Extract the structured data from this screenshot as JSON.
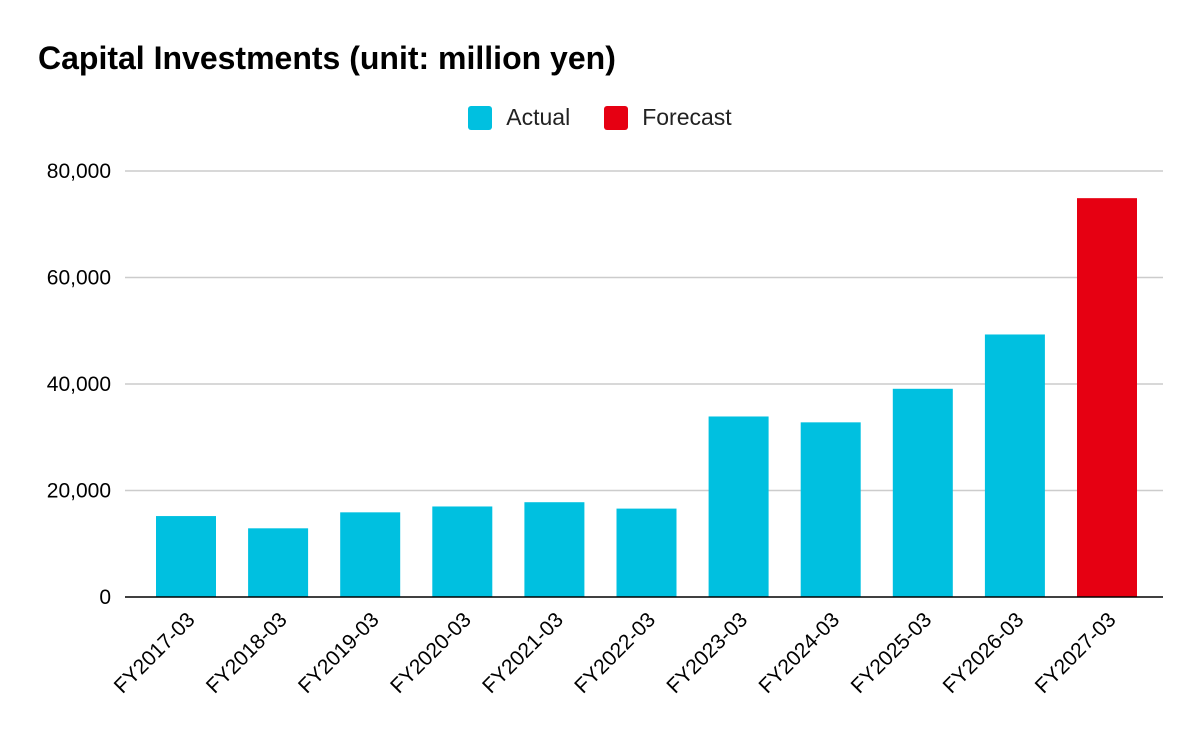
{
  "chart_data": {
    "type": "bar",
    "title": "Capital Investments (unit: million yen)",
    "xlabel": "",
    "ylabel": "",
    "categories": [
      "FY2017-03",
      "FY2018-03",
      "FY2019-03",
      "FY2020-03",
      "FY2021-03",
      "FY2022-03",
      "FY2023-03",
      "FY2024-03",
      "FY2025-03",
      "FY2026-03",
      "FY2027-03"
    ],
    "series": [
      {
        "name": "Actual",
        "color": "#00c0e0",
        "values": [
          15200,
          12900,
          15900,
          17000,
          17800,
          16600,
          33900,
          32800,
          39100,
          49300,
          null
        ]
      },
      {
        "name": "Forecast",
        "color": "#e60012",
        "values": [
          null,
          null,
          null,
          null,
          null,
          null,
          null,
          null,
          null,
          null,
          74900
        ]
      }
    ],
    "ylim": [
      0,
      80000
    ],
    "yticks": [
      0,
      20000,
      40000,
      60000,
      80000
    ],
    "ytick_labels": [
      "0",
      "20,000",
      "40,000",
      "60,000",
      "80,000"
    ],
    "grid": true,
    "legend_position": "top-center",
    "gridline_color": "#cccccc",
    "axis_color": "#000000"
  }
}
